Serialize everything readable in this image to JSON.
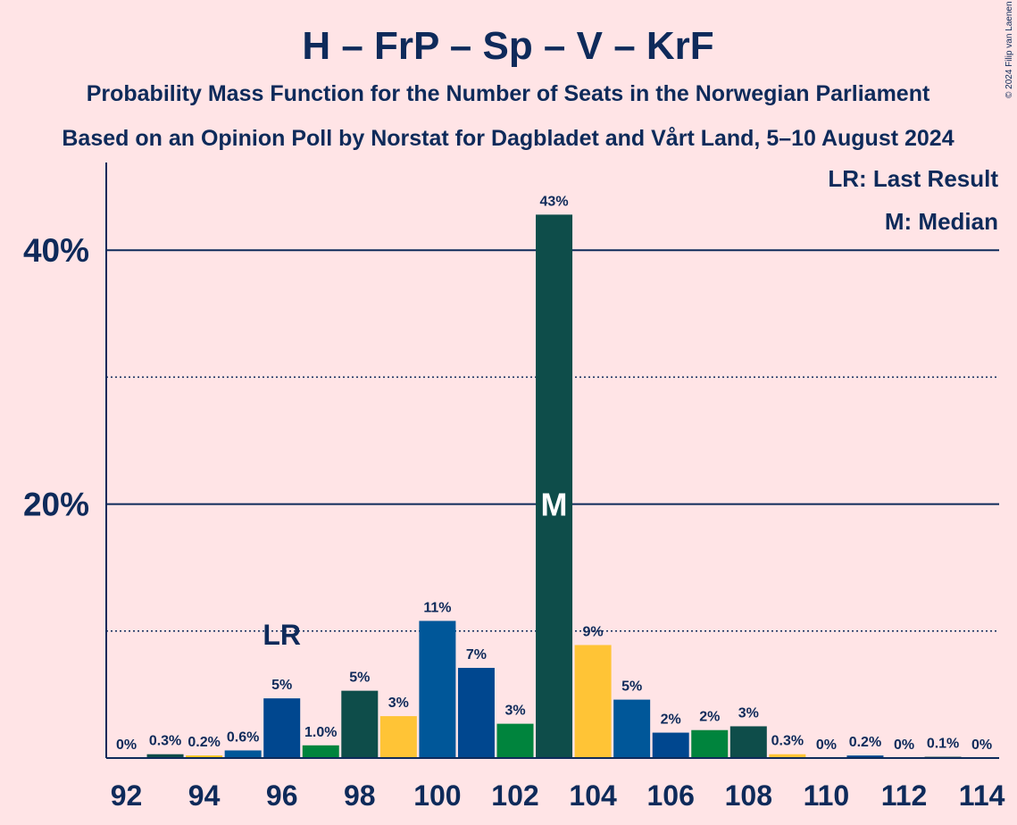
{
  "chart_data": {
    "type": "bar",
    "title": "H – FrP – Sp – V – KrF",
    "subtitle_1": "Probability Mass Function for the Number of Seats in the Norwegian Parliament",
    "subtitle_2": "Based on an Opinion Poll by Norstat for Dagbladet and Vårt Land, 5–10 August 2024",
    "copyright": "© 2024 Filip van Laenen",
    "x": [
      92,
      93,
      94,
      95,
      96,
      97,
      98,
      99,
      100,
      101,
      102,
      103,
      104,
      105,
      106,
      107,
      108,
      109,
      110,
      111,
      112,
      113,
      114
    ],
    "values": [
      0,
      0.3,
      0.2,
      0.6,
      4.7,
      1.0,
      5.3,
      3.3,
      10.8,
      7.1,
      2.7,
      42.8,
      8.9,
      4.6,
      2.0,
      2.2,
      2.5,
      0.3,
      0,
      0.2,
      0,
      0.1,
      0
    ],
    "labels": [
      "0%",
      "0.3%",
      "0.2%",
      "0.6%",
      "5%",
      "1.0%",
      "5%",
      "3%",
      "11%",
      "7%",
      "3%",
      "43%",
      "9%",
      "5%",
      "2%",
      "2%",
      "3%",
      "0.3%",
      "0%",
      "0.2%",
      "0%",
      "0.1%",
      "0%"
    ],
    "colors": [
      "#00A9E0",
      "#0E4D4A",
      "#F5C518",
      "#005799",
      "#00478F",
      "#00843D",
      "#0E4D4A",
      "#FFC436",
      "#005799",
      "#00478F",
      "#00843D",
      "#0E4D4A",
      "#FFC436",
      "#005799",
      "#00478F",
      "#00843D",
      "#0E4D4A",
      "#FFC436",
      "#005799",
      "#00478F",
      "#00843D",
      "#0E4D4A",
      "#FFC436"
    ],
    "x_tick_labels": [
      "92",
      "94",
      "96",
      "98",
      "100",
      "102",
      "104",
      "106",
      "108",
      "110",
      "112",
      "114"
    ],
    "y_tick_labels": [
      "20%",
      "40%"
    ],
    "ylim": [
      0,
      47
    ],
    "gridlines_major": [
      20,
      40
    ],
    "gridlines_minor": [
      10,
      30
    ],
    "last_result_seat": 96,
    "last_result_marker": "LR",
    "median_seat": 103,
    "median_marker": "M",
    "legend": {
      "placement": "top-right",
      "last_result": "LR: Last Result",
      "median": "M: Median"
    }
  }
}
